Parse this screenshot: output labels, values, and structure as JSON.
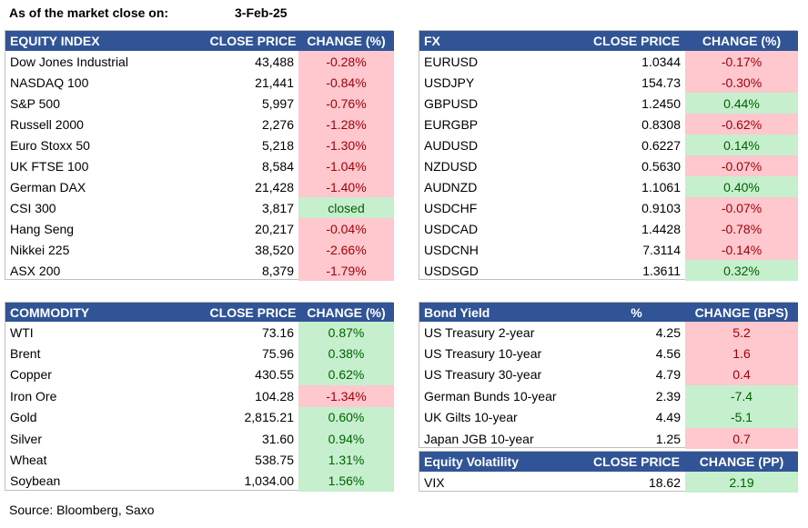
{
  "header": {
    "label": "As of the market close on:",
    "date": "3-Feb-25"
  },
  "tables": [
    {
      "columns": [
        "EQUITY INDEX",
        "CLOSE PRICE",
        "CHANGE (%)"
      ],
      "rise_fill": "#c6efce",
      "rise_text": "#006100",
      "fall_fill": "#ffc7ce",
      "fall_text": "#9c0006",
      "rows": [
        [
          "Dow Jones Industrial",
          "43,488",
          "-0.28%"
        ],
        [
          "NASDAQ 100",
          "21,441",
          "-0.84%"
        ],
        [
          "S&P 500",
          "5,997",
          "-0.76%"
        ],
        [
          "Russell 2000",
          "2,276",
          "-1.28%"
        ],
        [
          "Euro Stoxx 50",
          "5,218",
          "-1.30%"
        ],
        [
          "UK FTSE 100",
          "8,584",
          "-1.04%"
        ],
        [
          "German DAX",
          "21,428",
          "-1.40%"
        ],
        [
          "CSI 300",
          "3,817",
          "closed"
        ],
        [
          "Hang Seng",
          "20,217",
          "-0.04%"
        ],
        [
          "Nikkei 225",
          "38,520",
          "-2.66%"
        ],
        [
          "ASX 200",
          "8,379",
          "-1.79%"
        ]
      ]
    },
    {
      "columns": [
        "FX",
        "CLOSE PRICE",
        "CHANGE (%)"
      ],
      "rise_fill": "#c6efce",
      "rise_text": "#006100",
      "fall_fill": "#ffc7ce",
      "fall_text": "#9c0006",
      "rows": [
        [
          "EURUSD",
          "1.0344",
          "-0.17%"
        ],
        [
          "USDJPY",
          "154.73",
          "-0.30%"
        ],
        [
          "GBPUSD",
          "1.2450",
          "0.44%"
        ],
        [
          "EURGBP",
          "0.8308",
          "-0.62%"
        ],
        [
          "AUDUSD",
          "0.6227",
          "0.14%"
        ],
        [
          "NZDUSD",
          "0.5630",
          "-0.07%"
        ],
        [
          "AUDNZD",
          "1.1061",
          "0.40%"
        ],
        [
          "USDCHF",
          "0.9103",
          "-0.07%"
        ],
        [
          "USDCAD",
          "1.4428",
          "-0.78%"
        ],
        [
          "USDCNH",
          "7.3114",
          "-0.14%"
        ],
        [
          "USDSGD",
          "1.3611",
          "0.32%"
        ]
      ]
    },
    {
      "columns": [
        "COMMODITY",
        "CLOSE PRICE",
        "CHANGE (%)"
      ],
      "rise_fill": "#c6efce",
      "rise_text": "#006100",
      "fall_fill": "#ffc7ce",
      "fall_text": "#9c0006",
      "rows": [
        [
          "WTI",
          "73.16",
          "0.87%"
        ],
        [
          "Brent",
          "75.96",
          "0.38%"
        ],
        [
          "Copper",
          "430.55",
          "0.62%"
        ],
        [
          "Iron Ore",
          "104.28",
          "-1.34%"
        ],
        [
          "Gold",
          "2,815.21",
          "0.60%"
        ],
        [
          "Silver",
          "31.60",
          "0.94%"
        ],
        [
          "Wheat",
          "538.75",
          "1.31%"
        ],
        [
          "Soybean",
          "1,034.00",
          "1.56%"
        ]
      ]
    },
    {
      "columns": [
        "Bond Yield",
        "%",
        "CHANGE (BPS)"
      ],
      "rise_fill": "#ffc7ce",
      "rise_text": "#9c0006",
      "fall_fill": "#c6efce",
      "fall_text": "#006100",
      "rows": [
        [
          "US Treasury 2-year",
          "4.25",
          "5.2"
        ],
        [
          "US Treasury 10-year",
          "4.56",
          "1.6"
        ],
        [
          "US Treasury 30-year",
          "4.79",
          "0.4"
        ],
        [
          "German Bunds 10-year",
          "2.39",
          "-7.4"
        ],
        [
          "UK Gilts 10-year",
          "4.49",
          "-5.1"
        ],
        [
          "Japan JGB 10-year",
          "1.25",
          "0.7"
        ]
      ]
    },
    {
      "columns": [
        "Equity Volatility",
        "CLOSE PRICE",
        "CHANGE (PP)"
      ],
      "rise_fill": "#c6efce",
      "rise_text": "#006100",
      "fall_fill": "#ffc7ce",
      "fall_text": "#9c0006",
      "rows": [
        [
          "VIX",
          "18.62",
          "2.19"
        ]
      ]
    }
  ],
  "source": "Source: Bloomberg, Saxo"
}
